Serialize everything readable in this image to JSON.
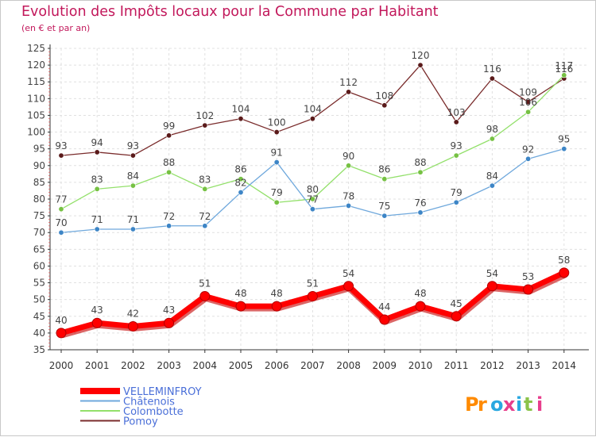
{
  "chart_data": {
    "type": "line",
    "title": "Evolution des Impôts locaux pour la Commune par Habitant",
    "subtitle": "(en € et par an)",
    "xlabel": "",
    "ylabel": "",
    "categories": [
      "2000",
      "2001",
      "2002",
      "2003",
      "2004",
      "2005",
      "2006",
      "2007",
      "2008",
      "2009",
      "2010",
      "2011",
      "2012",
      "2013",
      "2014"
    ],
    "ylim": [
      35,
      125
    ],
    "ytick_step": 5,
    "grid": true,
    "legend_position": "bottom-left",
    "series": [
      {
        "name": "VELLEMINFROY",
        "color": "#ff0000",
        "marker_color": "#ff0000",
        "values": [
          40,
          43,
          42,
          43,
          51,
          48,
          48,
          51,
          54,
          44,
          48,
          45,
          54,
          53,
          58
        ]
      },
      {
        "name": "Châtenois",
        "color": "#6fa8dc",
        "marker_color": "#3d85c6",
        "values": [
          70,
          71,
          71,
          72,
          72,
          82,
          91,
          77,
          78,
          75,
          76,
          79,
          84,
          92,
          95
        ]
      },
      {
        "name": "Colombotte",
        "color": "#93e06b",
        "marker_color": "#76c143",
        "values": [
          77,
          83,
          84,
          88,
          83,
          86,
          79,
          80,
          90,
          86,
          88,
          93,
          98,
          106,
          117
        ]
      },
      {
        "name": "Pomoy",
        "color": "#7a2c2c",
        "marker_color": "#5a1a1a",
        "values": [
          93,
          94,
          93,
          99,
          102,
          104,
          100,
          104,
          112,
          108,
          120,
          103,
          116,
          109,
          116
        ]
      }
    ]
  },
  "watermark": "Proxiti"
}
